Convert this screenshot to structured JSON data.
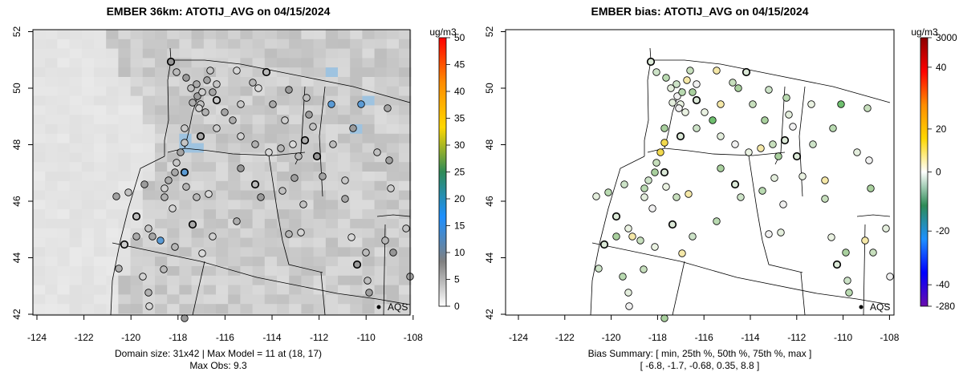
{
  "panels": [
    {
      "title": "EMBER 36km: ATOTIJ_AVG on 04/15/2024",
      "xticks": [
        "-124",
        "-122",
        "-120",
        "-118",
        "-116",
        "-114",
        "-112",
        "-110",
        "-108"
      ],
      "yticks": [
        "42",
        "44",
        "46",
        "48",
        "50",
        "52"
      ],
      "legend_label": "AQS",
      "footer_lines": [
        "Domain size: 31x42 | Max Model = 11 at (18, 17)",
        "Max Obs: 9.3"
      ],
      "colorbar": {
        "unit": "ug/m3",
        "ticks": [
          "50",
          "45",
          "40",
          "35",
          "30",
          "25",
          "20",
          "15",
          "10",
          "5",
          "0"
        ],
        "tick_values": [
          50,
          45,
          40,
          35,
          30,
          25,
          20,
          15,
          10,
          5,
          0
        ],
        "range": [
          0,
          50
        ],
        "stops": [
          "#ffffff",
          "#808080",
          "#1e90ff",
          "#2e8b57",
          "#ffd700",
          "#ff8c00",
          "#ff0000"
        ]
      }
    },
    {
      "title": "EMBER bias: ATOTIJ_AVG on 04/15/2024",
      "xticks": [
        "-124",
        "-122",
        "-120",
        "-118",
        "-116",
        "-114",
        "-112",
        "-110",
        "-108"
      ],
      "yticks": [
        "42",
        "44",
        "46",
        "48",
        "50",
        "52"
      ],
      "legend_label": "AQS",
      "footer_lines": [
        "Bias Summary: [ min, 25th %, 50th %, 75th %, max ]",
        "[ -6.8,   -1.7,   -0.68,   0.35,   8.8 ]"
      ],
      "colorbar": {
        "unit": "ug/m3",
        "ticks": [
          "3000",
          "40",
          "20",
          "0",
          "-20",
          "-40",
          "-280"
        ],
        "tick_fracs": [
          1.0,
          0.89,
          0.66,
          0.5,
          0.28,
          0.08,
          0.0
        ],
        "stops": [
          "#6a0dad",
          "#0000ff",
          "#1e90ff",
          "#2e8b57",
          "#ffffff",
          "#ffd700",
          "#ff8c00",
          "#ff0000",
          "#8b0000"
        ]
      }
    }
  ],
  "colors": {
    "land_fill": "#d3d3d3",
    "ocean_fill": "#e8e8e8",
    "border": "#000000",
    "frame": "#000000"
  }
}
